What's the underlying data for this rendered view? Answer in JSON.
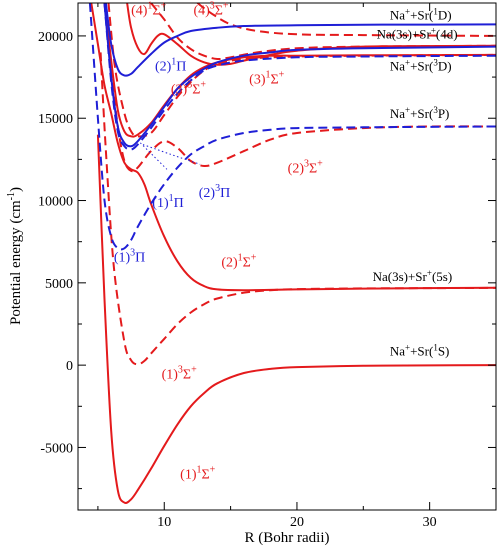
{
  "chart_data": {
    "type": "line",
    "xlabel": "R (Bohr radii)",
    "ylabel": "Potential energy (cm",
    "ylabel_sup": "-1",
    "ylabel_close": ")",
    "xlim": [
      3.5,
      35
    ],
    "ylim": [
      -8800,
      22000
    ],
    "xticks": [
      10,
      20,
      30
    ],
    "yticks": [
      -5000,
      0,
      5000,
      10000,
      15000,
      20000
    ],
    "grid": false,
    "series": [
      {
        "color": "#e41a1c",
        "dash": false,
        "points": [
          [
            5.0,
            14000
          ],
          [
            5.5,
            4000
          ],
          [
            6.0,
            -4000
          ],
          [
            6.5,
            -7600
          ],
          [
            7.0,
            -8350
          ],
          [
            7.5,
            -8150
          ],
          [
            8.0,
            -7600
          ],
          [
            9.0,
            -6300
          ],
          [
            10.0,
            -4900
          ],
          [
            11.0,
            -3600
          ],
          [
            12.0,
            -2500
          ],
          [
            13.0,
            -1700
          ],
          [
            14.0,
            -1100
          ],
          [
            16.0,
            -480
          ],
          [
            18.0,
            -230
          ],
          [
            20.0,
            -120
          ],
          [
            25.0,
            -40
          ],
          [
            30.0,
            -15
          ],
          [
            35.0,
            0
          ]
        ]
      },
      {
        "color": "#e41a1c",
        "dash": true,
        "points": [
          [
            5.2,
            19000
          ],
          [
            5.6,
            13000
          ],
          [
            6.2,
            6000
          ],
          [
            7.0,
            1400
          ],
          [
            7.5,
            300
          ],
          [
            8.0,
            50
          ],
          [
            8.5,
            250
          ],
          [
            9.0,
            700
          ],
          [
            10.0,
            1600
          ],
          [
            11.0,
            2500
          ],
          [
            12.0,
            3200
          ],
          [
            13.0,
            3700
          ],
          [
            14.0,
            4050
          ],
          [
            16.0,
            4400
          ],
          [
            18.0,
            4550
          ],
          [
            20.0,
            4620
          ],
          [
            25.0,
            4660
          ],
          [
            35.0,
            4690
          ]
        ]
      },
      {
        "color": "#e41a1c",
        "dash": false,
        "points": [
          [
            4.5,
            22000
          ],
          [
            5.0,
            19500
          ],
          [
            5.5,
            17000
          ],
          [
            6.0,
            15300
          ],
          [
            6.5,
            13500
          ],
          [
            7.0,
            12300
          ],
          [
            7.5,
            11900
          ],
          [
            8.0,
            11700
          ],
          [
            8.5,
            11000
          ],
          [
            9.0,
            9800
          ],
          [
            10.0,
            7800
          ],
          [
            11.0,
            6300
          ],
          [
            12.0,
            5300
          ],
          [
            13.0,
            4800
          ],
          [
            14.0,
            4600
          ],
          [
            16.0,
            4550
          ],
          [
            20.0,
            4600
          ],
          [
            25.0,
            4650
          ],
          [
            35.0,
            4700
          ]
        ]
      },
      {
        "color": "#e41a1c",
        "dash": true,
        "points": [
          [
            6.0,
            18000
          ],
          [
            6.5,
            14500
          ],
          [
            7.0,
            12400
          ],
          [
            7.5,
            11800
          ],
          [
            8.0,
            12000
          ],
          [
            9.0,
            13000
          ],
          [
            10.0,
            13600
          ],
          [
            11.0,
            13200
          ],
          [
            12.0,
            12400
          ],
          [
            13.0,
            12100
          ],
          [
            14.0,
            12300
          ],
          [
            16.0,
            13000
          ],
          [
            18.0,
            13700
          ],
          [
            20.0,
            14100
          ],
          [
            25.0,
            14400
          ],
          [
            30.0,
            14500
          ],
          [
            35.0,
            14500
          ]
        ]
      },
      {
        "color": "#e41a1c",
        "dash": false,
        "points": [
          [
            5.5,
            22000
          ],
          [
            6.0,
            18500
          ],
          [
            6.5,
            15500
          ],
          [
            7.0,
            14200
          ],
          [
            7.5,
            13900
          ],
          [
            8.0,
            14000
          ],
          [
            9.0,
            14700
          ],
          [
            10.0,
            15800
          ],
          [
            11.0,
            16800
          ],
          [
            12.0,
            17600
          ],
          [
            13.0,
            18100
          ],
          [
            14.0,
            18400
          ],
          [
            16.0,
            18700
          ],
          [
            18.0,
            18800
          ],
          [
            20.0,
            18800
          ],
          [
            25.0,
            18820
          ],
          [
            35.0,
            18850
          ]
        ]
      },
      {
        "color": "#e41a1c",
        "dash": true,
        "points": [
          [
            5.8,
            22000
          ],
          [
            6.3,
            18000
          ],
          [
            7.0,
            15300
          ],
          [
            7.5,
            14200
          ],
          [
            8.0,
            13900
          ],
          [
            9.0,
            14100
          ],
          [
            10.0,
            15200
          ],
          [
            11.0,
            16300
          ],
          [
            12.0,
            17200
          ],
          [
            13.0,
            17900
          ],
          [
            14.0,
            18300
          ],
          [
            16.0,
            18600
          ],
          [
            20.0,
            18750
          ],
          [
            25.0,
            18800
          ],
          [
            35.0,
            18850
          ]
        ]
      },
      {
        "color": "#e41a1c",
        "dash": false,
        "points": [
          [
            7.2,
            22000
          ],
          [
            7.5,
            20500
          ],
          [
            8.0,
            19300
          ],
          [
            8.5,
            18900
          ],
          [
            9.0,
            19500
          ],
          [
            9.5,
            20000
          ],
          [
            10.0,
            20100
          ],
          [
            11.0,
            19500
          ],
          [
            12.0,
            18800
          ],
          [
            13.0,
            18400
          ],
          [
            14.0,
            18250
          ],
          [
            15.0,
            18300
          ],
          [
            16.0,
            18500
          ],
          [
            18.0,
            18850
          ],
          [
            20.0,
            19100
          ],
          [
            25.0,
            19350
          ],
          [
            35.0,
            19400
          ]
        ]
      },
      {
        "color": "#e41a1c",
        "dash": true,
        "points": [
          [
            9.0,
            22000
          ],
          [
            10.0,
            21000
          ],
          [
            11.0,
            19900
          ],
          [
            12.0,
            19200
          ],
          [
            13.0,
            18800
          ],
          [
            14.0,
            18600
          ],
          [
            15.0,
            18700
          ],
          [
            17.0,
            19000
          ],
          [
            20.0,
            19250
          ],
          [
            25.0,
            19350
          ],
          [
            35.0,
            19400
          ]
        ]
      },
      {
        "color": "#e41a1c",
        "dash": true,
        "points": [
          [
            12.5,
            22000
          ],
          [
            13.5,
            21400
          ],
          [
            15.0,
            20700
          ],
          [
            17.0,
            20300
          ],
          [
            20.0,
            20100
          ],
          [
            25.0,
            20050
          ],
          [
            35.0,
            20000
          ]
        ]
      },
      {
        "color": "#1f1fd6",
        "dash": false,
        "points": [
          [
            5.6,
            22000
          ],
          [
            6.0,
            19500
          ],
          [
            6.5,
            18000
          ],
          [
            7.0,
            17600
          ],
          [
            7.5,
            17700
          ],
          [
            8.0,
            18100
          ],
          [
            9.0,
            18900
          ],
          [
            10.0,
            19600
          ],
          [
            11.0,
            20000
          ],
          [
            12.0,
            20300
          ],
          [
            14.0,
            20500
          ],
          [
            16.0,
            20600
          ],
          [
            20.0,
            20650
          ],
          [
            25.0,
            20680
          ],
          [
            35.0,
            20700
          ]
        ]
      },
      {
        "color": "#1f1fd6",
        "dash": false,
        "points": [
          [
            5.5,
            22000
          ],
          [
            6.0,
            17500
          ],
          [
            6.5,
            14500
          ],
          [
            7.0,
            13500
          ],
          [
            7.5,
            13300
          ],
          [
            8.0,
            13600
          ],
          [
            9.0,
            14600
          ],
          [
            10.0,
            15700
          ],
          [
            11.0,
            16800
          ],
          [
            12.0,
            17500
          ],
          [
            13.0,
            18000
          ],
          [
            14.0,
            18400
          ],
          [
            16.0,
            18800
          ],
          [
            18.0,
            19000
          ],
          [
            20.0,
            19150
          ],
          [
            25.0,
            19250
          ],
          [
            35.0,
            19350
          ]
        ]
      },
      {
        "color": "#1f1fd6",
        "dash": true,
        "points": [
          [
            5.5,
            22000
          ],
          [
            6.0,
            17200
          ],
          [
            6.5,
            14200
          ],
          [
            7.0,
            13300
          ],
          [
            7.5,
            13100
          ],
          [
            8.0,
            13400
          ],
          [
            9.0,
            14400
          ],
          [
            10.0,
            15500
          ],
          [
            11.0,
            16500
          ],
          [
            12.0,
            17300
          ],
          [
            13.0,
            17900
          ],
          [
            14.0,
            18200
          ],
          [
            16.0,
            18500
          ],
          [
            20.0,
            18700
          ],
          [
            25.0,
            18750
          ],
          [
            35.0,
            18800
          ]
        ]
      },
      {
        "color": "#1f1fd6",
        "dash": true,
        "points": [
          [
            4.4,
            22000
          ],
          [
            5.0,
            15000
          ],
          [
            5.5,
            10000
          ],
          [
            6.0,
            7800
          ],
          [
            6.5,
            7100
          ],
          [
            7.0,
            7100
          ],
          [
            7.5,
            7600
          ],
          [
            8.0,
            8400
          ],
          [
            9.0,
            9800
          ],
          [
            10.0,
            11000
          ],
          [
            11.0,
            12000
          ],
          [
            12.0,
            12800
          ],
          [
            13.0,
            13300
          ],
          [
            14.0,
            13700
          ],
          [
            16.0,
            14100
          ],
          [
            18.0,
            14300
          ],
          [
            20.0,
            14400
          ],
          [
            25.0,
            14450
          ],
          [
            35.0,
            14500
          ]
        ]
      },
      {
        "color": "#1f1fd6",
        "dash": "dot",
        "points": [
          [
            8.2,
            13500
          ],
          [
            9.2,
            12700
          ],
          [
            10.2,
            11900
          ]
        ]
      },
      {
        "color": "#1f1fd6",
        "dash": "dot",
        "points": [
          [
            8.4,
            13400
          ],
          [
            10.5,
            12800
          ],
          [
            12.7,
            12200
          ]
        ]
      }
    ],
    "annotations": [
      {
        "x": 11.2,
        "y": -6900,
        "color": "#e41a1c",
        "pre": "(1)",
        "s1": "1",
        "base": "Σ",
        "s2": "+"
      },
      {
        "x": 9.8,
        "y": -800,
        "color": "#e41a1c",
        "pre": "(1)",
        "s1": "3",
        "base": "Σ",
        "s2": "+"
      },
      {
        "x": 14.3,
        "y": 6000,
        "color": "#e41a1c",
        "pre": "(2)",
        "s1": "1",
        "base": "Σ",
        "s2": "+"
      },
      {
        "x": 19.3,
        "y": 11700,
        "color": "#e41a1c",
        "pre": "(2)",
        "s1": "3",
        "base": "Σ",
        "s2": "+"
      },
      {
        "x": 10.5,
        "y": 16500,
        "color": "#e41a1c",
        "pre": "(3)",
        "s1": "3",
        "base": "Σ",
        "s2": "+"
      },
      {
        "x": 16.4,
        "y": 17100,
        "color": "#e41a1c",
        "pre": "(3)",
        "s1": "1",
        "base": "Σ",
        "s2": "+"
      },
      {
        "x": 7.5,
        "y": 21300,
        "color": "#e41a1c",
        "pre": "(4)",
        "s1": "1",
        "base": "Σ",
        "s2": "+"
      },
      {
        "x": 12.2,
        "y": 21300,
        "color": "#e41a1c",
        "pre": "(4)",
        "s1": "3",
        "base": "Σ",
        "s2": "+"
      },
      {
        "x": 9.3,
        "y": 17900,
        "color": "#1f1fd6",
        "pre": "(2)",
        "s1": "1",
        "base": "Π",
        "s2": ""
      },
      {
        "x": 9.1,
        "y": 9600,
        "color": "#1f1fd6",
        "pre": "(1)",
        "s1": "1",
        "base": "Π",
        "s2": ""
      },
      {
        "x": 12.6,
        "y": 10200,
        "color": "#1f1fd6",
        "pre": "(2)",
        "s1": "3",
        "base": "Π",
        "s2": ""
      },
      {
        "x": 6.2,
        "y": 6300,
        "color": "#1f1fd6",
        "pre": "(1)",
        "s1": "3",
        "base": "Π",
        "s2": ""
      }
    ],
    "asymptotes": [
      {
        "x": 27.0,
        "y": 21000,
        "parts": [
          {
            "t": "Na"
          },
          {
            "t": "+",
            "sup": true
          },
          {
            "t": "+Sr("
          },
          {
            "t": "1",
            "sup": true
          },
          {
            "t": "D)"
          }
        ]
      },
      {
        "x": 26.0,
        "y": 19850,
        "parts": [
          {
            "t": "Na(3s)+Sr"
          },
          {
            "t": "+",
            "sup": true
          },
          {
            "t": "(4d)"
          }
        ]
      },
      {
        "x": 27.0,
        "y": 17900,
        "parts": [
          {
            "t": "Na"
          },
          {
            "t": "+",
            "sup": true
          },
          {
            "t": "+Sr("
          },
          {
            "t": "3",
            "sup": true
          },
          {
            "t": "D)"
          }
        ]
      },
      {
        "x": 27.0,
        "y": 15000,
        "parts": [
          {
            "t": "Na"
          },
          {
            "t": "+",
            "sup": true
          },
          {
            "t": "+Sr("
          },
          {
            "t": "3",
            "sup": true
          },
          {
            "t": "P)"
          }
        ]
      },
      {
        "x": 25.7,
        "y": 5100,
        "parts": [
          {
            "t": "Na(3s)+Sr"
          },
          {
            "t": "+",
            "sup": true
          },
          {
            "t": "(5s)"
          }
        ]
      },
      {
        "x": 27.0,
        "y": 600,
        "parts": [
          {
            "t": "Na"
          },
          {
            "t": "+",
            "sup": true
          },
          {
            "t": "+Sr("
          },
          {
            "t": "1",
            "sup": true
          },
          {
            "t": "S)"
          }
        ]
      }
    ]
  }
}
